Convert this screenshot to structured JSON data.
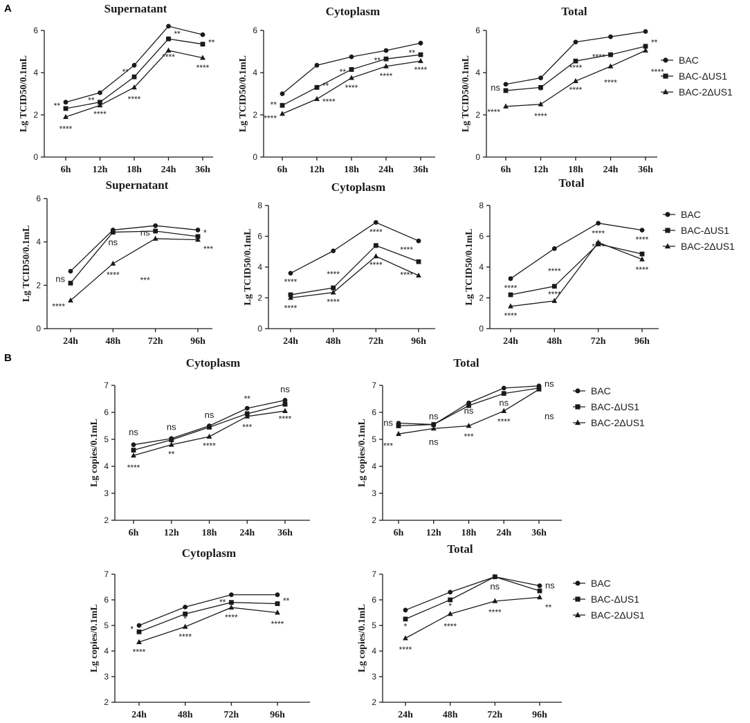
{
  "panels": {
    "a": "A",
    "b": "B"
  },
  "colors": {
    "ink": "#1a1a1a",
    "background": "#ffffff"
  },
  "legend": {
    "entries": [
      "BAC",
      "BAC-ΔUS1",
      "BAC-2ΔUS1"
    ],
    "markers": [
      "circle",
      "square",
      "triangle"
    ]
  },
  "chart_data": [
    {
      "id": "a1",
      "type": "line",
      "title": "Supernatant",
      "ylabel": "Lg TCID50/0.1mL",
      "categories": [
        "6h",
        "12h",
        "18h",
        "24h",
        "36h"
      ],
      "ylim": [
        0,
        6
      ],
      "yticks": [
        0,
        2,
        4,
        6
      ],
      "legend": false,
      "series": [
        {
          "name": "BAC",
          "values": [
            2.6,
            3.05,
            4.35,
            6.2,
            5.8
          ]
        },
        {
          "name": "BAC-ΔUS1",
          "values": [
            2.3,
            2.6,
            3.8,
            5.6,
            5.35
          ]
        },
        {
          "name": "BAC-2ΔUS1",
          "values": [
            1.9,
            2.45,
            3.3,
            5.05,
            4.7
          ]
        }
      ],
      "annotations": [
        {
          "text": "**",
          "cat": 0,
          "value": 2.3,
          "side": "left"
        },
        {
          "text": "****",
          "cat": 0,
          "value": 1.2
        },
        {
          "text": "**",
          "cat": 1,
          "value": 2.55,
          "side": "left"
        },
        {
          "text": "****",
          "cat": 1,
          "value": 1.9
        },
        {
          "text": "**",
          "cat": 2,
          "value": 3.9,
          "side": "left"
        },
        {
          "text": "****",
          "cat": 2,
          "value": 2.6
        },
        {
          "text": "**",
          "cat": 3,
          "value": 5.7,
          "side": "right"
        },
        {
          "text": "****",
          "cat": 3,
          "value": 4.6
        },
        {
          "text": "**",
          "cat": 4,
          "value": 5.3,
          "side": "right"
        },
        {
          "text": "****",
          "cat": 4,
          "value": 4.1
        }
      ]
    },
    {
      "id": "a2",
      "type": "line",
      "title": "Cytoplasm",
      "ylabel": "Lg TCID50/0.1mL",
      "categories": [
        "6h",
        "12h",
        "18h",
        "24h",
        "36h"
      ],
      "ylim": [
        0,
        6
      ],
      "yticks": [
        0,
        2,
        4,
        6
      ],
      "legend": false,
      "series": [
        {
          "name": "BAC",
          "values": [
            3.0,
            4.35,
            4.75,
            5.05,
            5.4
          ]
        },
        {
          "name": "BAC-ΔUS1",
          "values": [
            2.45,
            3.3,
            4.15,
            4.65,
            4.85
          ]
        },
        {
          "name": "BAC-2ΔUS1",
          "values": [
            2.05,
            2.75,
            3.75,
            4.3,
            4.55
          ]
        }
      ],
      "annotations": [
        {
          "text": "**",
          "cat": 0,
          "value": 2.35,
          "side": "left"
        },
        {
          "text": "****",
          "cat": 0,
          "value": 1.7,
          "side": "left"
        },
        {
          "text": "**",
          "cat": 1,
          "value": 3.25,
          "side": "right"
        },
        {
          "text": "****",
          "cat": 1,
          "value": 2.5,
          "side": "right"
        },
        {
          "text": "**",
          "cat": 2,
          "value": 3.9,
          "side": "left"
        },
        {
          "text": "****",
          "cat": 2,
          "value": 3.15
        },
        {
          "text": "**",
          "cat": 3,
          "value": 4.45,
          "side": "left"
        },
        {
          "text": "****",
          "cat": 3,
          "value": 3.7
        },
        {
          "text": "**",
          "cat": 4,
          "value": 4.8,
          "side": "left"
        },
        {
          "text": "****",
          "cat": 4,
          "value": 4.0
        }
      ]
    },
    {
      "id": "a3",
      "type": "line",
      "title": "Total",
      "ylabel": "Lg TCID50/0.1mL",
      "categories": [
        "6h",
        "12h",
        "18h",
        "24h",
        "36h"
      ],
      "ylim": [
        0,
        6
      ],
      "yticks": [
        0,
        2,
        4,
        6
      ],
      "legend": true,
      "series": [
        {
          "name": "BAC",
          "values": [
            3.45,
            3.75,
            5.45,
            5.7,
            5.95
          ]
        },
        {
          "name": "BAC-ΔUS1",
          "values": [
            3.15,
            3.3,
            4.55,
            4.85,
            5.25
          ]
        },
        {
          "name": "BAC-2ΔUS1",
          "values": [
            2.4,
            2.5,
            3.6,
            4.3,
            5.05
          ]
        }
      ],
      "annotations": [
        {
          "text": "ns",
          "cat": 0,
          "value": 3.15,
          "side": "left"
        },
        {
          "text": "****",
          "cat": 0,
          "value": 2.0,
          "side": "left"
        },
        {
          "text": "*",
          "cat": 1,
          "value": 3.0
        },
        {
          "text": "****",
          "cat": 1,
          "value": 1.8
        },
        {
          "text": "****",
          "cat": 2,
          "value": 4.1
        },
        {
          "text": "****",
          "cat": 2,
          "value": 3.05
        },
        {
          "text": "****",
          "cat": 3,
          "value": 4.6,
          "side": "left"
        },
        {
          "text": "****",
          "cat": 3,
          "value": 3.4
        },
        {
          "text": "**",
          "cat": 4,
          "value": 5.3,
          "side": "right"
        },
        {
          "text": "****",
          "cat": 4,
          "value": 3.9,
          "side": "right"
        }
      ]
    },
    {
      "id": "a4",
      "type": "line",
      "title": "Supernatant",
      "ylabel": "Lg TCID50/0.1mL",
      "categories": [
        "24h",
        "48h",
        "72h",
        "96h"
      ],
      "ylim": [
        0,
        6
      ],
      "yticks": [
        0,
        2,
        4,
        6
      ],
      "legend": false,
      "series": [
        {
          "name": "BAC",
          "values": [
            2.65,
            4.55,
            4.75,
            4.55
          ]
        },
        {
          "name": "BAC-ΔUS1",
          "values": [
            2.1,
            4.45,
            4.5,
            4.25
          ]
        },
        {
          "name": "BAC-2ΔUS1",
          "values": [
            1.3,
            3.0,
            4.15,
            4.1
          ]
        }
      ],
      "annotations": [
        {
          "text": "ns",
          "cat": 0,
          "value": 2.15,
          "side": "left"
        },
        {
          "text": "****",
          "cat": 0,
          "value": 0.9,
          "side": "left"
        },
        {
          "text": "ns",
          "cat": 1,
          "value": 3.85
        },
        {
          "text": "****",
          "cat": 1,
          "value": 2.35
        },
        {
          "text": "ns",
          "cat": 2,
          "value": 4.3,
          "side": "left"
        },
        {
          "text": "***",
          "cat": 2,
          "value": 2.1,
          "side": "left"
        },
        {
          "text": "*",
          "cat": 3,
          "value": 4.3,
          "side": "right"
        },
        {
          "text": "***",
          "cat": 3,
          "value": 3.55,
          "side": "right"
        }
      ]
    },
    {
      "id": "a5",
      "type": "line",
      "title": "Cytoplasm",
      "ylabel": "Lg TCID50/0.1mL",
      "categories": [
        "24h",
        "48h",
        "72h",
        "96h"
      ],
      "ylim": [
        0,
        8
      ],
      "yticks": [
        0,
        2,
        4,
        6,
        8
      ],
      "legend": false,
      "series": [
        {
          "name": "BAC",
          "values": [
            3.6,
            5.05,
            6.9,
            5.7
          ]
        },
        {
          "name": "BAC-ΔUS1",
          "values": [
            2.2,
            2.65,
            5.4,
            4.35
          ]
        },
        {
          "name": "BAC-2ΔUS1",
          "values": [
            2.0,
            2.35,
            4.7,
            3.45
          ]
        }
      ],
      "annotations": [
        {
          "text": "****",
          "cat": 0,
          "value": 2.85
        },
        {
          "text": "****",
          "cat": 0,
          "value": 1.15
        },
        {
          "text": "****",
          "cat": 1,
          "value": 3.35
        },
        {
          "text": "****",
          "cat": 1,
          "value": 1.55
        },
        {
          "text": "****",
          "cat": 2,
          "value": 6.1
        },
        {
          "text": "****",
          "cat": 2,
          "value": 3.95
        },
        {
          "text": "****",
          "cat": 3,
          "value": 4.95,
          "side": "left"
        },
        {
          "text": "****",
          "cat": 3,
          "value": 3.3,
          "side": "left"
        }
      ]
    },
    {
      "id": "a6",
      "type": "line",
      "title": "Total",
      "ylabel": "Lg TCID50/0.1mL",
      "categories": [
        "24h",
        "48h",
        "72h",
        "96h"
      ],
      "ylim": [
        0,
        8
      ],
      "yticks": [
        0,
        2,
        4,
        6,
        8
      ],
      "legend": true,
      "series": [
        {
          "name": "BAC",
          "values": [
            3.25,
            5.2,
            6.85,
            6.4
          ]
        },
        {
          "name": "BAC-ΔUS1",
          "values": [
            2.2,
            2.75,
            5.5,
            4.85
          ]
        },
        {
          "name": "BAC-2ΔUS1",
          "values": [
            1.45,
            1.8,
            5.6,
            4.5
          ]
        }
      ],
      "annotations": [
        {
          "text": "****",
          "cat": 0,
          "value": 2.45
        },
        {
          "text": "****",
          "cat": 0,
          "value": 0.65
        },
        {
          "text": "****",
          "cat": 1,
          "value": 3.55
        },
        {
          "text": "****",
          "cat": 1,
          "value": 2.05
        },
        {
          "text": "****",
          "cat": 2,
          "value": 6.0
        },
        {
          "text": "****",
          "cat": 2,
          "value": 5.15
        },
        {
          "text": "****",
          "cat": 3,
          "value": 5.6
        },
        {
          "text": "****",
          "cat": 3,
          "value": 3.65
        }
      ]
    },
    {
      "id": "b1",
      "type": "line",
      "title": "Cytoplasm",
      "ylabel": "Lg copies/0.1mL",
      "categories": [
        "6h",
        "12h",
        "18h",
        "24h",
        "36h"
      ],
      "ylim": [
        2,
        7
      ],
      "yticks": [
        2,
        3,
        4,
        5,
        6,
        7
      ],
      "legend": false,
      "series": [
        {
          "name": "BAC",
          "values": [
            4.8,
            5.03,
            5.5,
            6.15,
            6.45
          ]
        },
        {
          "name": "BAC-ΔUS1",
          "values": [
            4.6,
            4.98,
            5.45,
            5.95,
            6.3
          ]
        },
        {
          "name": "BAC-2ΔUS1",
          "values": [
            4.4,
            4.8,
            5.1,
            5.85,
            6.05
          ]
        }
      ],
      "annotations": [
        {
          "text": "ns",
          "cat": 0,
          "value": 5.15
        },
        {
          "text": "****",
          "cat": 0,
          "value": 3.85
        },
        {
          "text": "ns",
          "cat": 1,
          "value": 5.35
        },
        {
          "text": "**",
          "cat": 1,
          "value": 4.35
        },
        {
          "text": "ns",
          "cat": 2,
          "value": 5.8
        },
        {
          "text": "****",
          "cat": 2,
          "value": 4.65
        },
        {
          "text": "**",
          "cat": 3,
          "value": 6.4
        },
        {
          "text": "***",
          "cat": 3,
          "value": 5.35
        },
        {
          "text": "ns",
          "cat": 4,
          "value": 6.75
        },
        {
          "text": "****",
          "cat": 4,
          "value": 5.65
        }
      ]
    },
    {
      "id": "b2",
      "type": "line",
      "title": "Total",
      "ylabel": "Lg copies/0.1mL",
      "categories": [
        "6h",
        "12h",
        "18h",
        "24h",
        "36h"
      ],
      "ylim": [
        2,
        7
      ],
      "yticks": [
        2,
        3,
        4,
        5,
        6,
        7
      ],
      "legend": true,
      "series": [
        {
          "name": "BAC",
          "values": [
            5.6,
            5.55,
            6.35,
            6.9,
            6.98
          ]
        },
        {
          "name": "BAC-ΔUS1",
          "values": [
            5.5,
            5.55,
            6.25,
            6.7,
            6.9
          ]
        },
        {
          "name": "BAC-2ΔUS1",
          "values": [
            5.2,
            5.4,
            5.5,
            6.05,
            6.85
          ]
        }
      ],
      "annotations": [
        {
          "text": "ns",
          "cat": 0,
          "value": 5.5,
          "side": "left"
        },
        {
          "text": "***",
          "cat": 0,
          "value": 4.65,
          "side": "left"
        },
        {
          "text": "ns",
          "cat": 1,
          "value": 5.75
        },
        {
          "text": "ns",
          "cat": 1,
          "value": 4.8
        },
        {
          "text": "ns",
          "cat": 2,
          "value": 5.95
        },
        {
          "text": "***",
          "cat": 2,
          "value": 5.0
        },
        {
          "text": "ns",
          "cat": 3,
          "value": 6.25
        },
        {
          "text": "****",
          "cat": 3,
          "value": 5.55
        },
        {
          "text": "ns",
          "cat": 4,
          "value": 6.95,
          "side": "right"
        },
        {
          "text": "ns",
          "cat": 4,
          "value": 5.75,
          "side": "right"
        }
      ]
    },
    {
      "id": "b3",
      "type": "line",
      "title": "Cytoplasm",
      "ylabel": "Lg copies/0.1mL",
      "categories": [
        "24h",
        "48h",
        "72h",
        "96h"
      ],
      "ylim": [
        2,
        7
      ],
      "yticks": [
        2,
        3,
        4,
        5,
        6,
        7
      ],
      "legend": false,
      "series": [
        {
          "name": "BAC",
          "values": [
            5.0,
            5.72,
            6.2,
            6.2
          ]
        },
        {
          "name": "BAC-ΔUS1",
          "values": [
            4.75,
            5.45,
            5.9,
            5.85
          ]
        },
        {
          "name": "BAC-2ΔUS1",
          "values": [
            4.35,
            4.95,
            5.7,
            5.5
          ]
        }
      ],
      "annotations": [
        {
          "text": "*",
          "cat": 0,
          "value": 4.75,
          "side": "left"
        },
        {
          "text": "****",
          "cat": 0,
          "value": 3.85
        },
        {
          "text": "*",
          "cat": 1,
          "value": 5.15
        },
        {
          "text": "****",
          "cat": 1,
          "value": 4.45
        },
        {
          "text": "**",
          "cat": 2,
          "value": 5.8,
          "side": "left"
        },
        {
          "text": "****",
          "cat": 2,
          "value": 5.2
        },
        {
          "text": "**",
          "cat": 3,
          "value": 5.85,
          "side": "right"
        },
        {
          "text": "****",
          "cat": 3,
          "value": 4.95
        }
      ]
    },
    {
      "id": "b4",
      "type": "line",
      "title": "Total",
      "ylabel": "Lg copies/0.1mL",
      "categories": [
        "24h",
        "48h",
        "72h",
        "96h"
      ],
      "ylim": [
        2,
        7
      ],
      "yticks": [
        2,
        3,
        4,
        5,
        6,
        7
      ],
      "legend": true,
      "series": [
        {
          "name": "BAC",
          "values": [
            5.6,
            6.3,
            6.9,
            6.55
          ]
        },
        {
          "name": "BAC-ΔUS1",
          "values": [
            5.25,
            6.0,
            6.9,
            6.35
          ]
        },
        {
          "name": "BAC-2ΔUS1",
          "values": [
            4.5,
            5.45,
            5.95,
            6.1
          ]
        }
      ],
      "annotations": [
        {
          "text": "*",
          "cat": 0,
          "value": 4.85
        },
        {
          "text": "****",
          "cat": 0,
          "value": 3.95
        },
        {
          "text": "*",
          "cat": 1,
          "value": 5.65
        },
        {
          "text": "****",
          "cat": 1,
          "value": 4.85
        },
        {
          "text": "ns",
          "cat": 2,
          "value": 6.4
        },
        {
          "text": "****",
          "cat": 2,
          "value": 5.4
        },
        {
          "text": "ns",
          "cat": 3,
          "value": 6.45,
          "side": "right"
        },
        {
          "text": "**",
          "cat": 3,
          "value": 5.6,
          "side": "right"
        }
      ]
    }
  ]
}
